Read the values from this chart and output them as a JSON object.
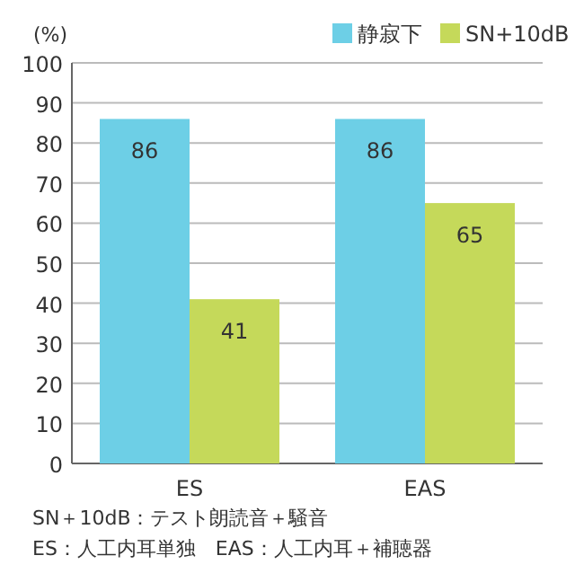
{
  "chart_data": {
    "type": "bar",
    "ylabel": "(%)",
    "categories": [
      "ES",
      "EAS"
    ],
    "series": [
      {
        "name": "静寂下",
        "color": "#6dcfe6",
        "values": [
          86,
          86
        ]
      },
      {
        "name": "SN+10dB",
        "color": "#c5d95a",
        "values": [
          41,
          65
        ]
      }
    ],
    "ylim": [
      0,
      100
    ],
    "yticks": [
      0,
      10,
      20,
      30,
      40,
      50,
      60,
      70,
      80,
      90,
      100
    ],
    "grid": "y",
    "legend": "top right",
    "data_labels": true,
    "annotations": [
      "SN＋10dB：テスト朗読音＋騒音",
      "ES：人工内耳単独　EAS：人工内耳＋補聴器"
    ]
  }
}
